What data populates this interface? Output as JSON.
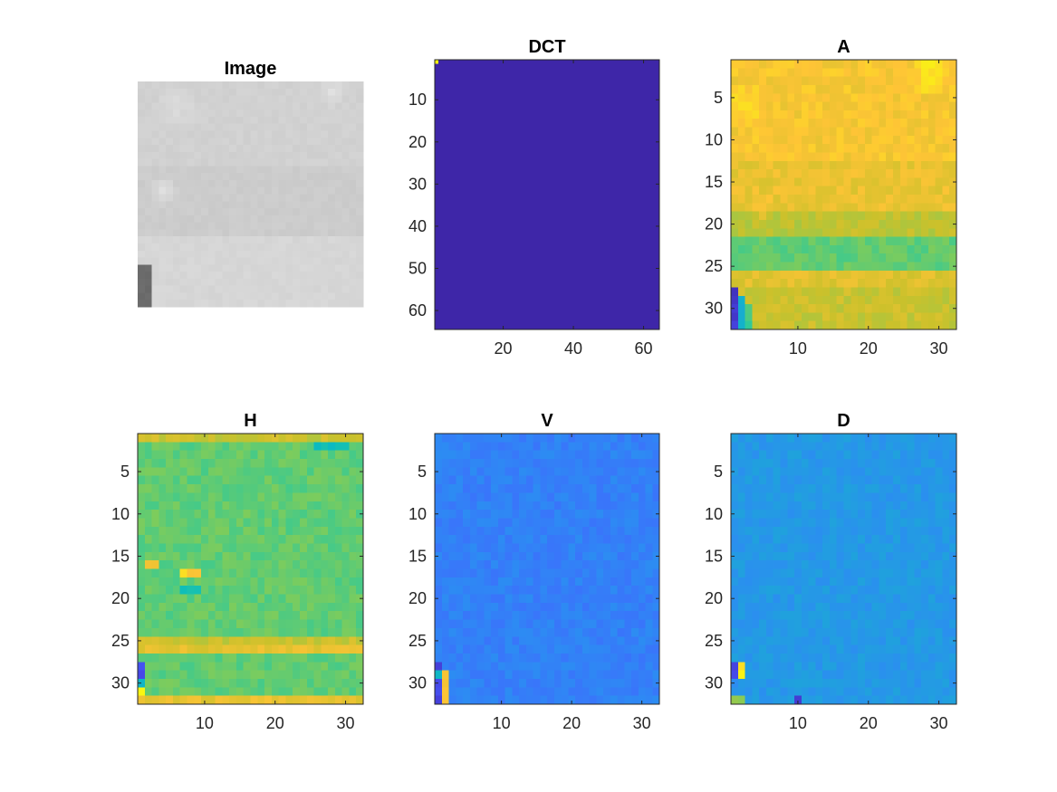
{
  "chart_data": [
    {
      "type": "heatmap",
      "title": "Image",
      "colormap": "gray",
      "grid_size": [
        32,
        32
      ],
      "axes_visible": false,
      "xticks": [],
      "yticks": [],
      "base_value": 0.82,
      "bands": [
        {
          "rows": [
            22,
            32
          ],
          "value": 0.84
        },
        {
          "rows": [
            13,
            22
          ],
          "value": 0.8
        }
      ],
      "blobs": [
        {
          "row": 4,
          "col": 6,
          "radius": 3,
          "value": 0.86
        },
        {
          "row": 2,
          "col": 28,
          "radius": 2,
          "value": 0.88
        },
        {
          "row": 16,
          "col": 4,
          "radius": 2,
          "value": 0.87
        }
      ],
      "patches": [
        {
          "rows": [
            27,
            32
          ],
          "cols": [
            1,
            2
          ],
          "value": 0.42
        }
      ]
    },
    {
      "type": "heatmap",
      "title": "DCT",
      "colormap": "parula",
      "grid_size": [
        64,
        64
      ],
      "xlim": [
        0.5,
        64.5
      ],
      "ylim": [
        0.5,
        64.5
      ],
      "xticks": [
        20,
        40,
        60
      ],
      "yticks": [
        10,
        20,
        30,
        40,
        50,
        60
      ],
      "base_value": 0.0,
      "patches": [
        {
          "rows": [
            1,
            1
          ],
          "cols": [
            1,
            1
          ],
          "value": 1.0
        }
      ]
    },
    {
      "type": "heatmap",
      "title": "A",
      "colormap": "parula",
      "grid_size": [
        32,
        32
      ],
      "xlim": [
        0.5,
        32.5
      ],
      "ylim": [
        0.5,
        32.5
      ],
      "xticks": [
        10,
        20,
        30
      ],
      "yticks": [
        5,
        10,
        15,
        20,
        25,
        30
      ],
      "base_value": 0.86,
      "bands": [
        {
          "rows": [
            1,
            12
          ],
          "value": 0.89
        },
        {
          "rows": [
            19,
            21
          ],
          "value": 0.78
        },
        {
          "rows": [
            22,
            25
          ],
          "value": 0.66
        },
        {
          "rows": [
            26,
            27
          ],
          "value": 0.84
        },
        {
          "rows": [
            28,
            32
          ],
          "value": 0.8
        }
      ],
      "blobs": [
        {
          "row": 2,
          "col": 29,
          "radius": 3,
          "value": 0.97
        },
        {
          "row": 6,
          "col": 3,
          "radius": 3,
          "value": 0.96
        },
        {
          "row": 18,
          "col": 5,
          "radius": 2,
          "value": 0.88
        }
      ],
      "patches": [
        {
          "rows": [
            28,
            32
          ],
          "cols": [
            1,
            1
          ],
          "value": 0.05
        },
        {
          "rows": [
            29,
            32
          ],
          "cols": [
            2,
            2
          ],
          "value": 0.42
        },
        {
          "rows": [
            30,
            32
          ],
          "cols": [
            3,
            3
          ],
          "value": 0.62
        }
      ]
    },
    {
      "type": "heatmap",
      "title": "H",
      "colormap": "parula",
      "grid_size": [
        32,
        32
      ],
      "xlim": [
        0.5,
        32.5
      ],
      "ylim": [
        0.5,
        32.5
      ],
      "xticks": [
        10,
        20,
        30
      ],
      "yticks": [
        5,
        10,
        15,
        20,
        25,
        30
      ],
      "base_value": 0.66,
      "bands": [
        {
          "rows": [
            1,
            1
          ],
          "value": 0.8
        },
        {
          "rows": [
            25,
            25
          ],
          "value": 0.8
        },
        {
          "rows": [
            26,
            26
          ],
          "value": 0.85
        },
        {
          "rows": [
            32,
            32
          ],
          "value": 0.86
        }
      ],
      "patches": [
        {
          "rows": [
            16,
            16
          ],
          "cols": [
            2,
            3
          ],
          "value": 0.9
        },
        {
          "rows": [
            17,
            17
          ],
          "cols": [
            7,
            9
          ],
          "value": 0.92
        },
        {
          "rows": [
            19,
            19
          ],
          "cols": [
            7,
            9
          ],
          "value": 0.52
        },
        {
          "rows": [
            2,
            2
          ],
          "cols": [
            26,
            30
          ],
          "value": 0.5
        },
        {
          "rows": [
            28,
            29
          ],
          "cols": [
            1,
            1
          ],
          "value": 0.12
        },
        {
          "rows": [
            30,
            30
          ],
          "cols": [
            1,
            1
          ],
          "value": 0.45
        },
        {
          "rows": [
            31,
            31
          ],
          "cols": [
            1,
            1
          ],
          "value": 0.98
        }
      ]
    },
    {
      "type": "heatmap",
      "title": "V",
      "colormap": "parula",
      "grid_size": [
        32,
        32
      ],
      "xlim": [
        0.5,
        32.5
      ],
      "ylim": [
        0.5,
        32.5
      ],
      "xticks": [
        10,
        20,
        30
      ],
      "yticks": [
        5,
        10,
        15,
        20,
        25,
        30
      ],
      "base_value": 0.27,
      "patches": [
        {
          "rows": [
            28,
            32
          ],
          "cols": [
            1,
            1
          ],
          "value": 0.1
        },
        {
          "rows": [
            29,
            32
          ],
          "cols": [
            2,
            2
          ],
          "value": 0.9
        },
        {
          "rows": [
            29,
            29
          ],
          "cols": [
            1,
            1
          ],
          "value": 0.5
        }
      ]
    },
    {
      "type": "heatmap",
      "title": "D",
      "colormap": "parula",
      "grid_size": [
        32,
        32
      ],
      "xlim": [
        0.5,
        32.5
      ],
      "ylim": [
        0.5,
        32.5
      ],
      "xticks": [
        10,
        20,
        30
      ],
      "yticks": [
        5,
        10,
        15,
        20,
        25,
        30
      ],
      "base_value": 0.35,
      "patches": [
        {
          "rows": [
            28,
            29
          ],
          "cols": [
            1,
            1
          ],
          "value": 0.08
        },
        {
          "rows": [
            28,
            29
          ],
          "cols": [
            2,
            2
          ],
          "value": 0.95
        },
        {
          "rows": [
            30,
            31
          ],
          "cols": [
            1,
            1
          ],
          "value": 0.3
        },
        {
          "rows": [
            32,
            32
          ],
          "cols": [
            1,
            2
          ],
          "value": 0.7
        },
        {
          "rows": [
            32,
            32
          ],
          "cols": [
            10,
            10
          ],
          "value": 0.1
        }
      ]
    }
  ]
}
